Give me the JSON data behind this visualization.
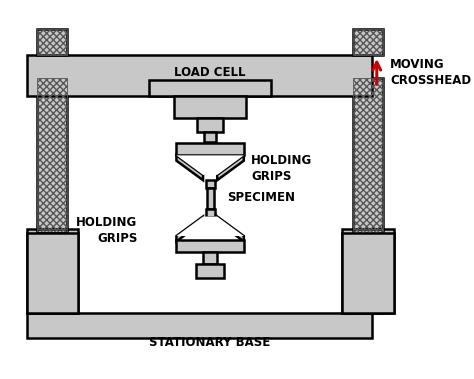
{
  "bg_color": "#ffffff",
  "gray_fill": "#c8c8c8",
  "black": "#000000",
  "red": "#cc0000",
  "load_cell_label": "LOAD CELL",
  "moving_crosshead_label": "MOVING\nCROSSHEAD",
  "holding_grips_label_top": "HOLDING\nGRIPS",
  "holding_grips_label_bottom": "HOLDING\nGRIPS",
  "specimen_label": "SPECIMEN",
  "stationary_base_label": "STATIONARY BASE",
  "lw": 1.8
}
